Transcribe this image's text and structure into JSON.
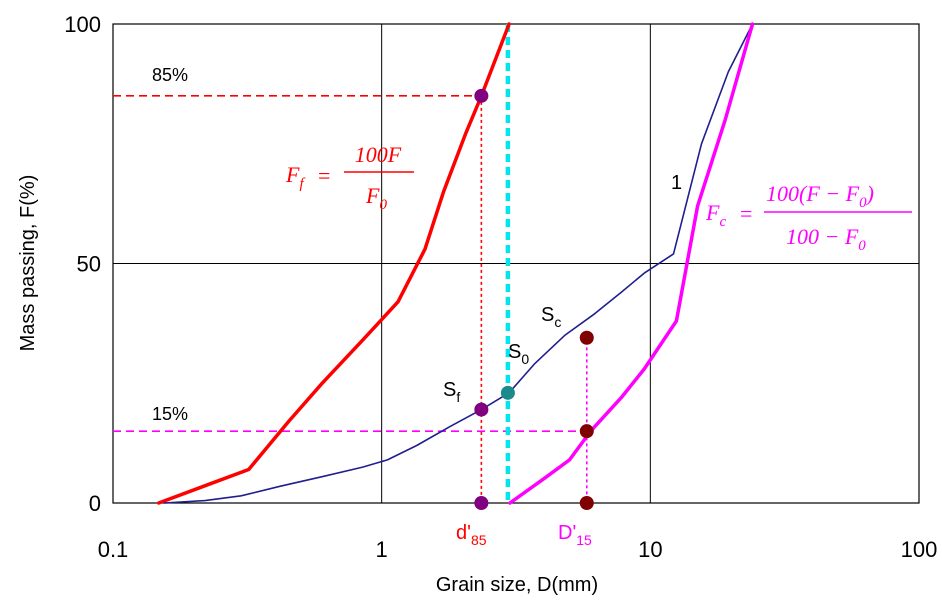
{
  "chart_data": {
    "type": "line",
    "xlabel": "Grain size, D(mm)",
    "ylabel": "Mass passing, F(%)",
    "x_scale": "log",
    "xlim": [
      0.1,
      100
    ],
    "ylim": [
      0,
      100
    ],
    "x_ticks": [
      0.1,
      1,
      10,
      100
    ],
    "x_tick_labels": [
      "0.1",
      "1",
      "10",
      "100"
    ],
    "y_ticks": [
      0,
      50,
      100
    ],
    "y_tick_labels": [
      "0",
      "50",
      "100"
    ],
    "grid": true,
    "colors": {
      "fine": "#ff0000",
      "whole": "#1f1f8f",
      "coarse": "#ff00ff",
      "divider": "#00e5ee",
      "point_fine": "#800080",
      "point_coarse": "#800000",
      "point_whole": "#1a8a8a"
    },
    "series": [
      {
        "key": "fine",
        "x": [
          0.148,
          0.23,
          0.32,
          0.45,
          0.6,
          0.85,
          1.15,
          1.45,
          1.7,
          2.05,
          2.35,
          2.98
        ],
        "y": [
          0,
          4,
          7,
          17,
          25,
          34,
          42,
          53,
          65,
          77,
          85,
          100
        ]
      },
      {
        "key": "whole",
        "name": "1",
        "x": [
          0.155,
          0.22,
          0.3,
          0.42,
          0.6,
          0.85,
          1.05,
          1.35,
          1.8,
          2.35,
          2.98,
          3.7,
          4.8,
          6.2,
          7.8,
          9.5,
          12.2,
          15.5,
          19.5,
          24.0
        ],
        "y": [
          0,
          0.5,
          1.5,
          3.5,
          5.5,
          7.5,
          9,
          12,
          16,
          19.5,
          23,
          29,
          35,
          39.5,
          44,
          48,
          52,
          75,
          90,
          100
        ]
      },
      {
        "key": "coarse",
        "x": [
          3.0,
          4.0,
          5.0,
          6.0,
          7.8,
          9.5,
          12.5,
          15.0,
          19.0,
          24.0
        ],
        "y": [
          0,
          5,
          9,
          15,
          22,
          28,
          38,
          62,
          80,
          100
        ]
      }
    ],
    "divider_x": 2.95,
    "reference_lines": [
      {
        "label": "85%",
        "y": 85,
        "x_end": 2.35,
        "color": "#ff0000"
      },
      {
        "label": "15%",
        "y": 15,
        "x_end": 5.8,
        "color": "#ff00ff"
      }
    ],
    "drop_lines": [
      {
        "x": 2.35,
        "y_top": 85,
        "color": "#ff0000"
      },
      {
        "x": 5.8,
        "y_top": 35,
        "color": "#ff00ff"
      }
    ],
    "points": [
      {
        "key": "d85",
        "x": 2.35,
        "y": 85,
        "color": "#800080"
      },
      {
        "key": "sf",
        "x": 2.35,
        "y": 19.5,
        "color": "#800080"
      },
      {
        "key": "d85_axis",
        "x": 2.35,
        "y": 0,
        "color": "#800080"
      },
      {
        "key": "s0",
        "x": 2.95,
        "y": 23,
        "color": "#1a8a8a"
      },
      {
        "key": "sc",
        "x": 5.8,
        "y": 34.5,
        "color": "#800000"
      },
      {
        "key": "d15",
        "x": 5.8,
        "y": 15,
        "color": "#800000"
      },
      {
        "key": "d15_axis",
        "x": 5.8,
        "y": 0,
        "color": "#800000"
      }
    ],
    "labels": {
      "sf": {
        "main": "S",
        "sub": "f"
      },
      "s0": {
        "main": "S",
        "sub": "0"
      },
      "sc": {
        "main": "S",
        "sub": "c"
      },
      "d85": {
        "main": "d'",
        "sub": "85"
      },
      "d15": {
        "main": "D'",
        "sub": "15"
      },
      "curve1": "1"
    },
    "formulas": {
      "ff": {
        "lhs": "F",
        "lhs_sub": "f",
        "eq": "=",
        "num": "100F",
        "den": "F",
        "den_sub": "0"
      },
      "fc": {
        "lhs": "F",
        "lhs_sub": "c",
        "eq": "=",
        "num": "100(F − F",
        "num_sub": "0",
        "num_close": ")",
        "den": "100 − F",
        "den_sub": "0"
      }
    }
  }
}
